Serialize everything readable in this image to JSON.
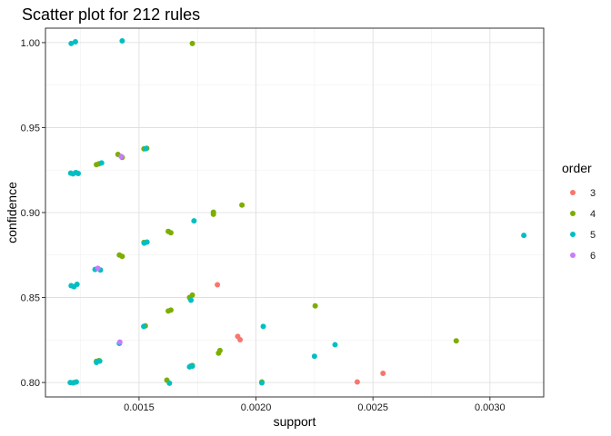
{
  "chart_data": {
    "type": "scatter",
    "title": "Scatter plot for 212 rules",
    "xlabel": "support",
    "ylabel": "confidence",
    "xlim": [
      0.0011,
      0.00323
    ],
    "ylim": [
      0.7915,
      1.0085
    ],
    "x_ticks": [
      0.0015,
      0.002,
      0.0025,
      0.003
    ],
    "x_tick_labels": [
      "0.0015",
      "0.0020",
      "0.0025",
      "0.0030"
    ],
    "y_ticks": [
      0.8,
      0.85,
      0.9,
      0.95,
      1.0
    ],
    "y_tick_labels": [
      "0.80",
      "0.85",
      "0.90",
      "0.95",
      "1.00"
    ],
    "grid": true,
    "legend": {
      "title": "order",
      "placement": "right",
      "entries": [
        {
          "label": "3",
          "color": "#F8766D"
        },
        {
          "label": "4",
          "color": "#7CAE00"
        },
        {
          "label": "5",
          "color": "#00BFC4"
        },
        {
          "label": "6",
          "color": "#C77CFF"
        }
      ]
    },
    "series": [
      {
        "name": "3",
        "color": "#F8766D",
        "points": [
          [
            0.001722,
            0.8098
          ],
          [
            0.001835,
            0.8575
          ],
          [
            0.001922,
            0.8271
          ],
          [
            0.001932,
            0.8252
          ],
          [
            0.002433,
            0.8003
          ],
          [
            0.002543,
            0.8054
          ]
        ]
      },
      {
        "name": "4",
        "color": "#7CAE00",
        "points": [
          [
            0.001222,
            0.8
          ],
          [
            0.001318,
            0.8125
          ],
          [
            0.001329,
            0.8129
          ],
          [
            0.001318,
            0.9282
          ],
          [
            0.001329,
            0.9287
          ],
          [
            0.001416,
            0.875
          ],
          [
            0.001428,
            0.8742
          ],
          [
            0.00141,
            0.9342
          ],
          [
            0.001428,
            0.9325
          ],
          [
            0.001527,
            0.8333
          ],
          [
            0.001521,
            0.8824
          ],
          [
            0.001521,
            0.9375
          ],
          [
            0.001533,
            0.9378
          ],
          [
            0.001619,
            0.8014
          ],
          [
            0.001625,
            0.8421
          ],
          [
            0.001636,
            0.8426
          ],
          [
            0.001625,
            0.8889
          ],
          [
            0.001636,
            0.8881
          ],
          [
            0.001716,
            0.85
          ],
          [
            0.001728,
            0.8514
          ],
          [
            0.001728,
            0.81
          ],
          [
            0.001728,
            0.9995
          ],
          [
            0.001818,
            0.9002
          ],
          [
            0.001818,
            0.899
          ],
          [
            0.00184,
            0.8173
          ],
          [
            0.001846,
            0.8188
          ],
          [
            0.00194,
            0.9044
          ],
          [
            0.002025,
            0.8003
          ],
          [
            0.002253,
            0.8451
          ],
          [
            0.002856,
            0.8245
          ]
        ]
      },
      {
        "name": "5",
        "color": "#00BFC4",
        "points": [
          [
            0.001206,
            0.8
          ],
          [
            0.001218,
            0.7998
          ],
          [
            0.001232,
            0.8003
          ],
          [
            0.00121,
            0.857
          ],
          [
            0.001222,
            0.8564
          ],
          [
            0.001235,
            0.8578
          ],
          [
            0.001208,
            0.9232
          ],
          [
            0.001218,
            0.9228
          ],
          [
            0.00123,
            0.9235
          ],
          [
            0.00124,
            0.923
          ],
          [
            0.00121,
            0.9995
          ],
          [
            0.001228,
            1.0005
          ],
          [
            0.001318,
            0.8118
          ],
          [
            0.001332,
            0.8126
          ],
          [
            0.001312,
            0.8665
          ],
          [
            0.001335,
            0.8662
          ],
          [
            0.00134,
            0.9292
          ],
          [
            0.001428,
            1.001
          ],
          [
            0.001416,
            0.823
          ],
          [
            0.00152,
            0.833
          ],
          [
            0.001522,
            0.882
          ],
          [
            0.001534,
            0.8826
          ],
          [
            0.001529,
            0.9376
          ],
          [
            0.00163,
            0.7996
          ],
          [
            0.001716,
            0.8092
          ],
          [
            0.001728,
            0.8096
          ],
          [
            0.001722,
            0.8484
          ],
          [
            0.001735,
            0.8951
          ],
          [
            0.002025,
            0.7998
          ],
          [
            0.002031,
            0.833
          ],
          [
            0.00225,
            0.8154
          ],
          [
            0.002338,
            0.8222
          ],
          [
            0.003145,
            0.8866
          ]
        ]
      },
      {
        "name": "6",
        "color": "#C77CFF",
        "points": [
          [
            0.001324,
            0.8672
          ],
          [
            0.001418,
            0.8238
          ],
          [
            0.001424,
            0.933
          ]
        ]
      }
    ]
  }
}
